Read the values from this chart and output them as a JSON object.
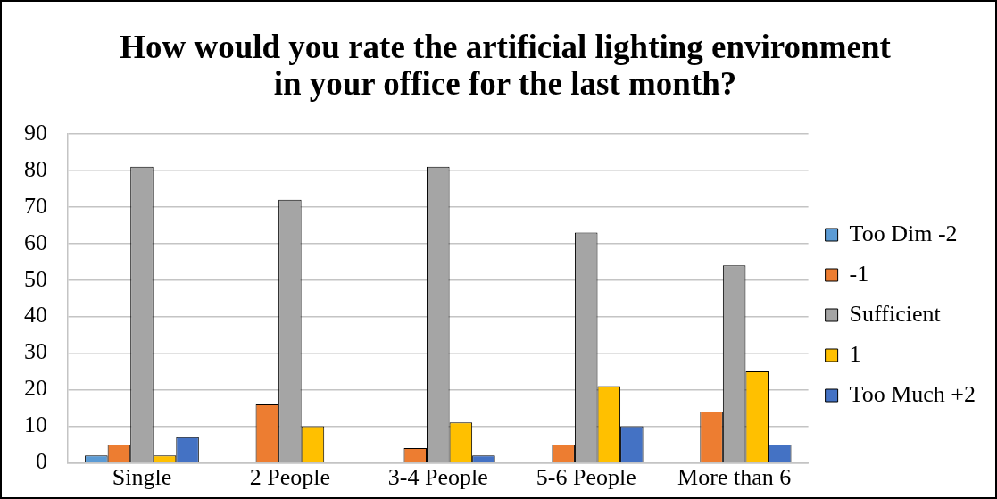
{
  "chart_data": {
    "type": "bar",
    "title": "How would you rate the artificial lighting environment in your office for the last month?",
    "categories": [
      "Single",
      "2 People",
      "3-4 People",
      "5-6 People",
      "More than 6"
    ],
    "series": [
      {
        "name": "Too Dim -2",
        "color": "#5b9bd5",
        "values": [
          2,
          0,
          0,
          0,
          0
        ]
      },
      {
        "name": "-1",
        "color": "#ed7d31",
        "values": [
          5,
          16,
          4,
          5,
          14
        ]
      },
      {
        "name": "Sufficient",
        "color": "#a5a5a5",
        "values": [
          81,
          72,
          81,
          63,
          54
        ]
      },
      {
        "name": "1",
        "color": "#ffc000",
        "values": [
          2,
          10,
          11,
          21,
          25
        ]
      },
      {
        "name": "Too Much +2",
        "color": "#4472c4",
        "values": [
          7,
          0,
          2,
          10,
          5
        ]
      }
    ],
    "ylim": [
      0,
      90
    ],
    "yticks": [
      0,
      10,
      20,
      30,
      40,
      50,
      60,
      70,
      80,
      90
    ],
    "grid": "y",
    "legend": "right"
  }
}
